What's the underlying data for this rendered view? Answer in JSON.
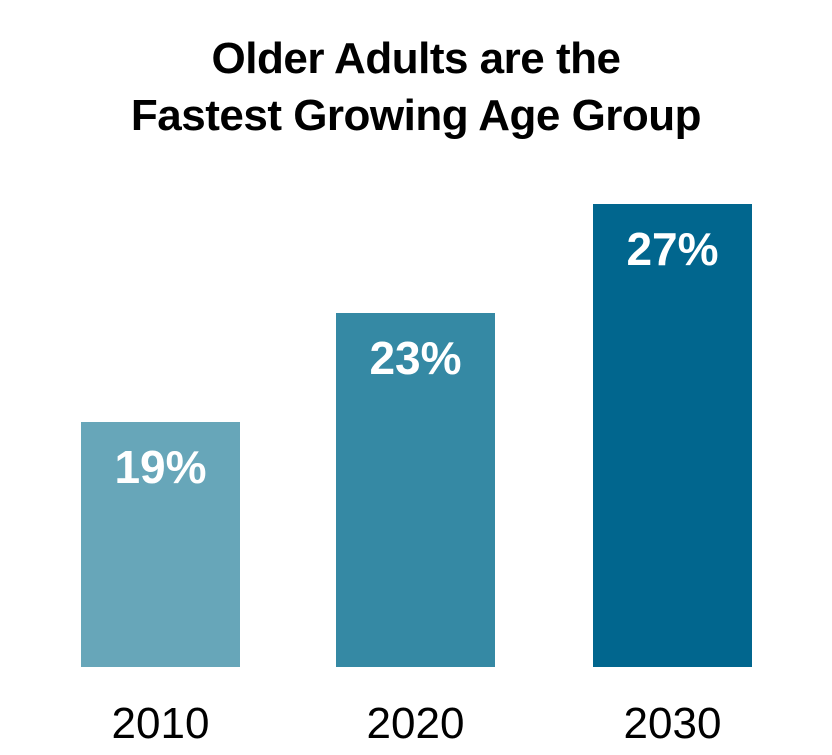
{
  "title": {
    "line1": "Older Adults are the",
    "line2": "Fastest Growing Age Group"
  },
  "chart_data": {
    "type": "bar",
    "title": "Older Adults are the Fastest Growing Age Group",
    "categories": [
      "2010",
      "2020",
      "2030"
    ],
    "values": [
      19,
      23,
      27
    ],
    "value_labels": [
      "19%",
      "23%",
      "27%"
    ],
    "unit": "%",
    "bar_colors": [
      "#67A6B9",
      "#3589A4",
      "#01668E"
    ],
    "value_label_color": "#FFFFFF",
    "title_color": "#000000",
    "axis_label_color": "#000000",
    "axis_min": 10,
    "axis_max": 27,
    "xlabel": "",
    "ylabel": "",
    "grid": false,
    "legend": "none",
    "axes_visible": false
  }
}
